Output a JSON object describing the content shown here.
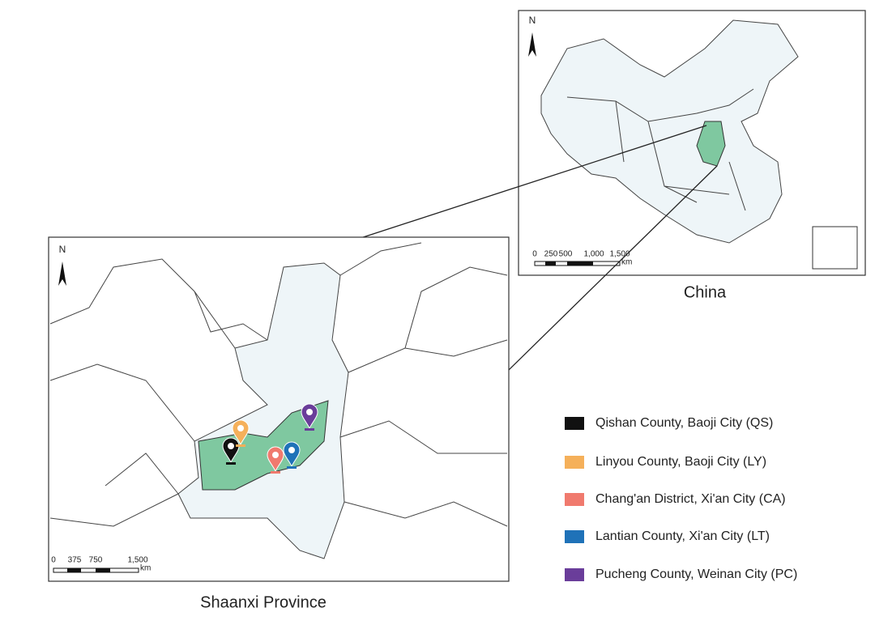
{
  "china_map": {
    "north_label": "N",
    "scale_labels": [
      "0",
      "250",
      "500",
      "1,000",
      "1,500"
    ],
    "scale_unit": "km",
    "caption": "China"
  },
  "shaanxi_map": {
    "north_label": "N",
    "scale_labels": [
      "0",
      "375",
      "750",
      "1,500"
    ],
    "scale_unit": "km",
    "caption": "Shaanxi Province"
  },
  "legend": [
    {
      "label": "Qishan County, Baoji City (QS)",
      "color": "#111111"
    },
    {
      "label": "Linyou County, Baoji City (LY)",
      "color": "#f5b05a"
    },
    {
      "label": "Chang'an District, Xi'an City (CA)",
      "color": "#f07a6e"
    },
    {
      "label": "Lantian County, Xi'an City (LT)",
      "color": "#1f72b8"
    },
    {
      "label": "Pucheng County, Weinan City (PC)",
      "color": "#6a3d9a"
    }
  ]
}
